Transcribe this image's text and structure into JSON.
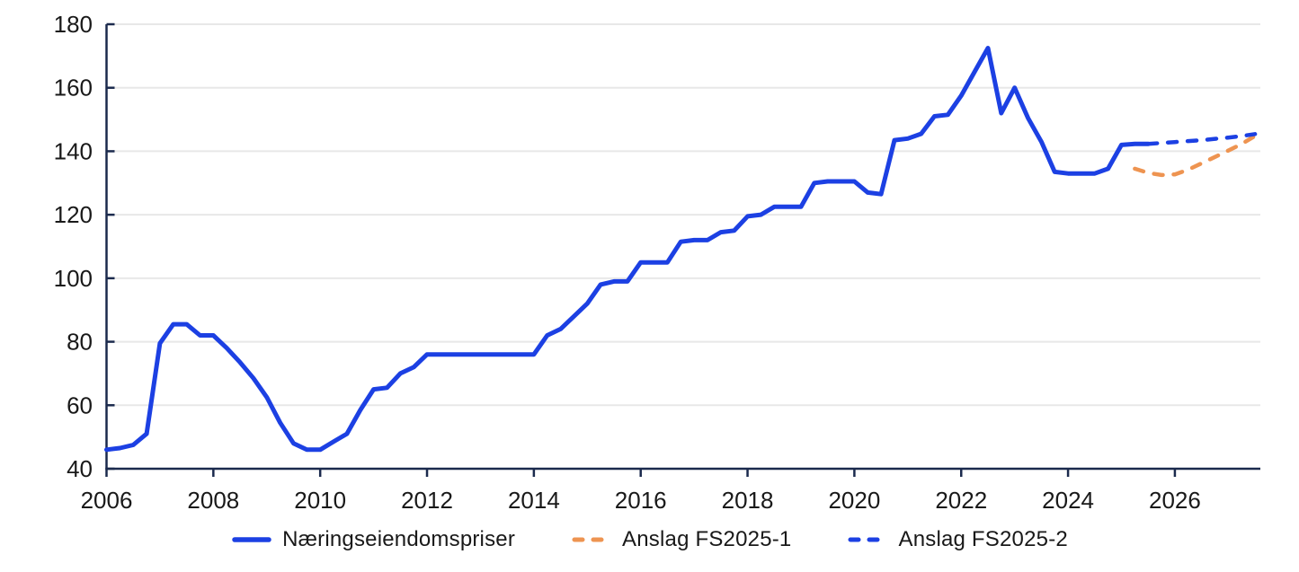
{
  "chart_data": {
    "type": "line",
    "title": "",
    "xlabel": "",
    "ylabel": "",
    "grid": true,
    "legend_position": "bottom",
    "ylim": [
      40,
      180
    ],
    "yticks": [
      40,
      60,
      80,
      100,
      120,
      140,
      160,
      180
    ],
    "xlim": [
      2006,
      2027.6
    ],
    "xticks": [
      2006,
      2008,
      2010,
      2012,
      2014,
      2016,
      2018,
      2020,
      2022,
      2024,
      2026
    ],
    "colors": {
      "axis": "#1b2a4d",
      "gridline": "#e8e8e8",
      "tick_label": "#191919",
      "blue": "#1c40e3",
      "orange": "#ee9451"
    },
    "series": [
      {
        "name": "Næringseiendomspriser",
        "color": "#1c40e3",
        "style": "solid",
        "x": [
          2006.0,
          2006.25,
          2006.5,
          2006.75,
          2007.0,
          2007.25,
          2007.5,
          2007.75,
          2008.0,
          2008.25,
          2008.5,
          2008.75,
          2009.0,
          2009.25,
          2009.5,
          2009.75,
          2010.0,
          2010.25,
          2010.5,
          2010.75,
          2011.0,
          2011.25,
          2011.5,
          2011.75,
          2012.0,
          2012.25,
          2012.5,
          2012.75,
          2013.0,
          2013.25,
          2013.5,
          2013.75,
          2014.0,
          2014.25,
          2014.5,
          2014.75,
          2015.0,
          2015.25,
          2015.5,
          2015.75,
          2016.0,
          2016.25,
          2016.5,
          2016.75,
          2017.0,
          2017.25,
          2017.5,
          2017.75,
          2018.0,
          2018.25,
          2018.5,
          2018.75,
          2019.0,
          2019.25,
          2019.5,
          2019.75,
          2020.0,
          2020.25,
          2020.5,
          2020.75,
          2021.0,
          2021.25,
          2021.5,
          2021.75,
          2022.0,
          2022.25,
          2022.5,
          2022.75,
          2023.0,
          2023.25,
          2023.5,
          2023.75,
          2024.0,
          2024.25,
          2024.5,
          2024.75,
          2025.0,
          2025.25,
          2025.5
        ],
        "values": [
          46,
          46.5,
          47.5,
          51,
          79.5,
          85.5,
          85.5,
          82,
          82,
          78,
          73.5,
          68.5,
          62.5,
          54.5,
          48,
          46,
          46,
          48.5,
          51,
          58.5,
          65,
          65.5,
          70,
          72,
          76,
          76,
          76,
          76,
          76,
          76,
          76,
          76,
          76,
          82,
          84,
          88,
          92,
          98,
          99,
          99,
          105,
          105,
          105,
          111.5,
          112,
          112,
          114.5,
          115,
          119.5,
          120,
          122.5,
          122.5,
          122.5,
          130,
          130.5,
          130.5,
          130.5,
          127,
          126.5,
          143.5,
          144,
          145.5,
          151,
          151.5,
          157.5,
          165,
          172.5,
          152,
          160,
          150.5,
          143,
          133.5,
          133,
          133,
          133,
          134.5,
          142,
          142.3,
          142.3
        ]
      },
      {
        "name": "Anslag FS2025-1",
        "color": "#ee9451",
        "style": "dashed",
        "x": [
          2025.25,
          2025.5,
          2025.75,
          2026.0,
          2026.25,
          2026.5,
          2026.75,
          2027.0,
          2027.25,
          2027.5
        ],
        "values": [
          134.5,
          133.2,
          132.5,
          132.7,
          134.2,
          136.2,
          138.2,
          140.2,
          142.3,
          144.8
        ]
      },
      {
        "name": "Anslag FS2025-2",
        "color": "#1c40e3",
        "style": "dashed",
        "x": [
          2025.5,
          2025.75,
          2026.0,
          2026.25,
          2026.5,
          2026.75,
          2027.0,
          2027.25,
          2027.5
        ],
        "values": [
          142.3,
          142.6,
          142.9,
          143.2,
          143.5,
          143.9,
          144.3,
          144.8,
          145.4
        ]
      }
    ]
  }
}
